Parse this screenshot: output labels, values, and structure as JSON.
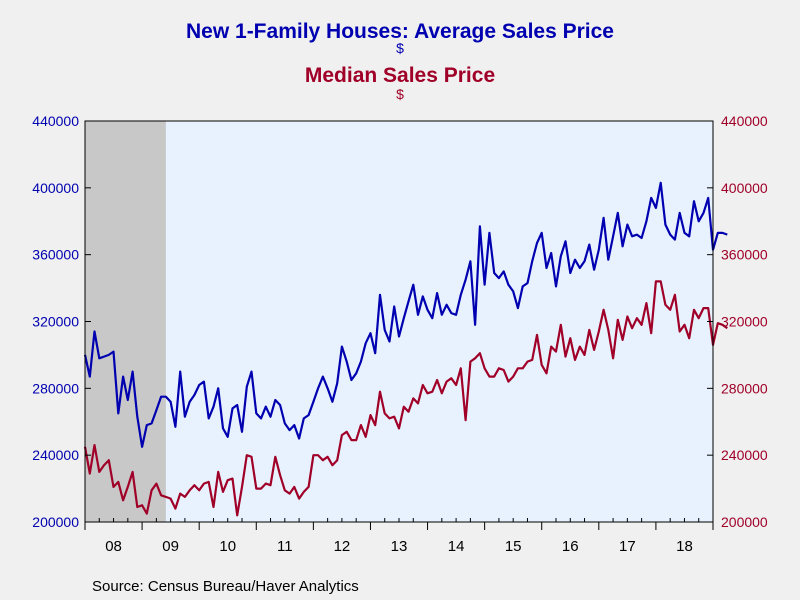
{
  "titles": {
    "line1": "New 1-Family Houses: Average Sales Price",
    "unit1": "$",
    "line2": "Median Sales Price",
    "unit2": "$"
  },
  "source": "Source:  Census Bureau/Haver Analytics",
  "colors": {
    "average": "#0000b0",
    "median": "#a00028",
    "plot_bg": "#e8f2ff",
    "recession": "#c8c8c8"
  },
  "chart_data": {
    "type": "line",
    "x_axis": {
      "tick_labels": [
        "08",
        "09",
        "10",
        "11",
        "12",
        "13",
        "14",
        "15",
        "16",
        "17",
        "18"
      ],
      "start": 2008.0,
      "end": 2019.0
    },
    "y_axis_left": {
      "min": 200000,
      "max": 440000,
      "ticks": [
        "200000",
        "240000",
        "280000",
        "320000",
        "360000",
        "400000",
        "440000"
      ]
    },
    "y_axis_right": {
      "min": 200000,
      "max": 440000,
      "ticks": [
        "200000",
        "240000",
        "280000",
        "320000",
        "360000",
        "400000",
        "440000"
      ]
    },
    "recession_shading": [
      {
        "start": "2008-01",
        "end": "2009-06"
      }
    ],
    "series": [
      {
        "name": "Average Sales Price",
        "start": "2008-01",
        "frequency": "monthly",
        "values": [
          300000,
          287000,
          314000,
          298000,
          299000,
          300000,
          302000,
          265000,
          287000,
          273000,
          290000,
          263000,
          245000,
          258000,
          259000,
          267000,
          275000,
          275000,
          272000,
          257000,
          290000,
          263000,
          272000,
          276000,
          282000,
          284000,
          262000,
          269000,
          280000,
          256000,
          251000,
          268000,
          270000,
          254000,
          281000,
          290000,
          265000,
          262000,
          269000,
          263000,
          273000,
          270000,
          259000,
          255000,
          258000,
          250000,
          262000,
          264000,
          272000,
          280000,
          287000,
          280000,
          272000,
          283000,
          305000,
          296000,
          285000,
          289000,
          296000,
          307000,
          313000,
          301000,
          336000,
          315000,
          308000,
          329000,
          311000,
          322000,
          332000,
          342000,
          324000,
          335000,
          327000,
          322000,
          337000,
          324000,
          330000,
          325000,
          324000,
          336000,
          345000,
          356000,
          318000,
          377000,
          342000,
          373000,
          349000,
          346000,
          350000,
          342000,
          338000,
          328000,
          341000,
          343000,
          356000,
          367000,
          373000,
          352000,
          361000,
          341000,
          359000,
          368000,
          349000,
          357000,
          352000,
          356000,
          366000,
          351000,
          363000,
          382000,
          357000,
          371000,
          385000,
          365000,
          378000,
          371000,
          372000,
          370000,
          380000,
          394000,
          388000,
          403000,
          378000,
          372000,
          369000,
          385000,
          373000,
          371000,
          392000,
          380000,
          385000,
          394000,
          363000,
          373000,
          373000,
          372000
        ]
      },
      {
        "name": "Median Sales Price",
        "start": "2008-01",
        "frequency": "monthly",
        "values": [
          245000,
          229000,
          246000,
          230000,
          234000,
          237000,
          221000,
          224000,
          213000,
          221000,
          230000,
          209000,
          210000,
          205000,
          219000,
          223000,
          216000,
          215000,
          214000,
          208000,
          217000,
          215000,
          219000,
          222000,
          219000,
          223000,
          224000,
          209000,
          230000,
          218000,
          225000,
          226000,
          204000,
          221000,
          240000,
          239000,
          220000,
          220000,
          223000,
          222000,
          239000,
          228000,
          219000,
          217000,
          221000,
          214000,
          218000,
          221000,
          240000,
          240000,
          237000,
          239000,
          234000,
          237000,
          252000,
          254000,
          249000,
          249000,
          258000,
          251000,
          264000,
          258000,
          278000,
          265000,
          262000,
          263000,
          256000,
          269000,
          266000,
          274000,
          271000,
          282000,
          277000,
          278000,
          285000,
          277000,
          284000,
          286000,
          282000,
          292000,
          261000,
          296000,
          298000,
          301000,
          292000,
          287000,
          287000,
          292000,
          291000,
          284000,
          287000,
          292000,
          292000,
          296000,
          297000,
          312000,
          294000,
          289000,
          305000,
          302000,
          318000,
          299000,
          310000,
          297000,
          305000,
          300000,
          315000,
          303000,
          314000,
          327000,
          315000,
          298000,
          321000,
          309000,
          323000,
          316000,
          322000,
          318000,
          331000,
          313000,
          344000,
          344000,
          330000,
          327000,
          336000,
          314000,
          318000,
          310000,
          327000,
          322000,
          328000,
          328000,
          306000,
          319000,
          318000,
          316000
        ]
      }
    ]
  }
}
